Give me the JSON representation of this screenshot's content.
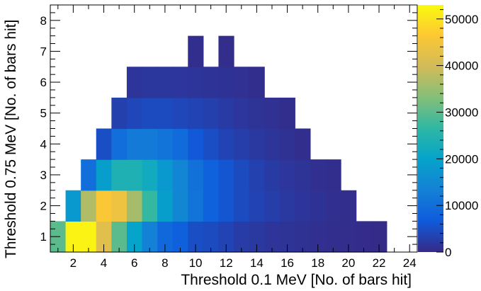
{
  "chart_data": {
    "type": "heatmap",
    "title": "",
    "xlabel": "Threshold 0.1  MeV [No. of bars hit]",
    "ylabel": "Threshold 0.75 MeV [No. of bars hit]",
    "x_bin_edges": [
      0.5,
      24.5
    ],
    "y_bin_edges": [
      0.5,
      8.5
    ],
    "x_ticks": [
      2,
      4,
      6,
      8,
      10,
      12,
      14,
      16,
      18,
      20,
      22,
      24
    ],
    "y_ticks": [
      1,
      2,
      3,
      4,
      5,
      6,
      7,
      8
    ],
    "colorbar": {
      "range": [
        0,
        53000
      ],
      "ticks": [
        0,
        10000,
        20000,
        30000,
        40000,
        50000
      ],
      "palette": "kBird"
    },
    "cells": [
      {
        "y": 1,
        "x": [
          1,
          2,
          3,
          4,
          5,
          6,
          7,
          8,
          9,
          10,
          11,
          12,
          13,
          14,
          15,
          16,
          17,
          18,
          19,
          20,
          21,
          22
        ],
        "values": [
          30000,
          52000,
          52000,
          42000,
          30000,
          20000,
          13500,
          9000,
          7500,
          5000,
          4500,
          3500,
          2500,
          2000,
          1500,
          1200,
          1000,
          800,
          600,
          400,
          300,
          200
        ]
      },
      {
        "y": 2,
        "x": [
          2,
          3,
          4,
          5,
          6,
          7,
          8,
          9,
          10,
          11,
          12,
          13,
          14,
          15,
          16,
          17,
          18,
          19,
          20
        ],
        "values": [
          18000,
          37000,
          46000,
          44000,
          36000,
          27000,
          19000,
          14500,
          11000,
          8000,
          6000,
          4500,
          3500,
          2700,
          2000,
          1500,
          1100,
          800,
          500
        ]
      },
      {
        "y": 3,
        "x": [
          3,
          4,
          5,
          6,
          7,
          8,
          9,
          10,
          11,
          12,
          13,
          14,
          15,
          16,
          17,
          18,
          19
        ],
        "values": [
          10000,
          19000,
          24000,
          24000,
          22000,
          18000,
          14000,
          10500,
          8000,
          6000,
          4500,
          3200,
          2400,
          1700,
          1200,
          800,
          500
        ]
      },
      {
        "y": 4,
        "x": [
          4,
          5,
          6,
          7,
          8,
          9,
          10,
          11,
          12,
          13,
          14,
          15,
          16,
          17
        ],
        "values": [
          5000,
          10000,
          12000,
          12000,
          11000,
          9500,
          6500,
          5000,
          3500,
          2800,
          2000,
          1500,
          1000,
          600
        ]
      },
      {
        "y": 5,
        "x": [
          5,
          6,
          7,
          8,
          9,
          10,
          11,
          12,
          13,
          14,
          15,
          16
        ],
        "values": [
          3000,
          4000,
          4500,
          4500,
          4000,
          3500,
          3000,
          2300,
          1700,
          1200,
          900,
          600
        ]
      },
      {
        "y": 6,
        "x": [
          6,
          7,
          8,
          9,
          10,
          11,
          12,
          13,
          14
        ],
        "values": [
          1500,
          1800,
          1800,
          1700,
          1500,
          1300,
          1100,
          900,
          600
        ]
      },
      {
        "y": 7,
        "x": [
          10,
          12
        ],
        "values": [
          500,
          400
        ]
      }
    ]
  }
}
